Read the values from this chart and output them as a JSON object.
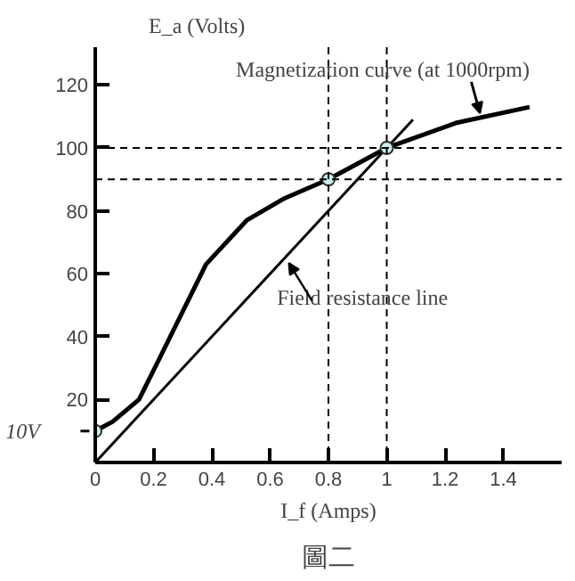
{
  "chart_data": {
    "type": "line",
    "xlabel": "I_f (Amps)",
    "ylabel": "E_a (Volts)",
    "xlim": [
      0,
      1.6
    ],
    "ylim": [
      0,
      132
    ],
    "xticks": [
      0,
      0.2,
      0.4,
      0.6,
      0.8,
      1.0,
      1.2,
      1.4
    ],
    "yticks": [
      {
        "value": 0,
        "label": null
      },
      20,
      40,
      60,
      80,
      100,
      120
    ],
    "grid": false,
    "marker": "none",
    "line_style": "solid",
    "series": [
      {
        "name": "Magnetization curve (at 1000rpm)",
        "color": "#000000",
        "x": [
          0,
          0.06,
          0.15,
          0.22,
          0.3,
          0.38,
          0.52,
          0.65,
          0.8,
          1.0,
          1.24,
          1.49
        ],
        "values": [
          10,
          13,
          20,
          33,
          48,
          63,
          77,
          84,
          90,
          100,
          108,
          113
        ]
      },
      {
        "name": "Field resistance line",
        "color": "#000000",
        "x": [
          0,
          1.09
        ],
        "values": [
          0,
          109
        ]
      },
      {
        "type": "scatter",
        "marker": "circle",
        "color": "#c8f0f0",
        "x": [
          0,
          0.8,
          1.0
        ],
        "values": [
          10,
          90,
          100
        ]
      }
    ],
    "ref_lines": [
      {
        "axis": "y",
        "value": 100,
        "line_style": "dashed",
        "color": "#000000"
      },
      {
        "axis": "y",
        "value": 90,
        "line_style": "dashed",
        "color": "#000000"
      },
      {
        "axis": "x",
        "value": 0.8,
        "line_style": "dashed",
        "color": "#000000"
      },
      {
        "axis": "x",
        "value": 1.0,
        "line_style": "dashed",
        "color": "#000000"
      }
    ],
    "annotations": [
      {
        "text": "10V",
        "x": 0,
        "y": 10
      },
      "圖二"
    ]
  }
}
